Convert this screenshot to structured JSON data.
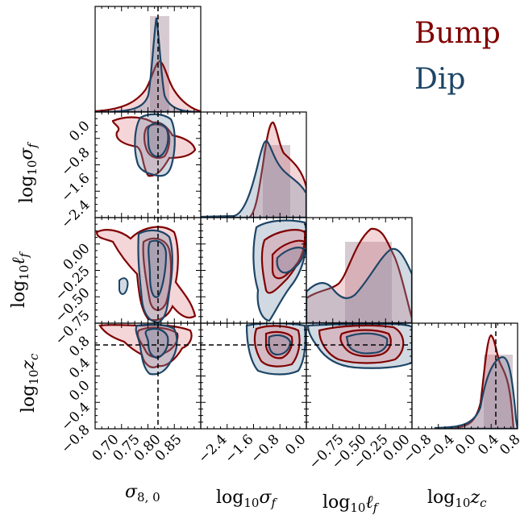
{
  "chart_data": {
    "type": "corner",
    "parameters": [
      "σ8,0",
      "log10σf",
      "log10ℓf",
      "log10zc"
    ],
    "axis_labels": {
      "sigma8": "σ",
      "sigma8_sub": "8, 0",
      "log": "log",
      "log_sub": "10",
      "sigma_f": "σ",
      "sigma_f_sub": "f",
      "ell_f": "ℓ",
      "ell_f_sub": "f",
      "z_c": "z",
      "z_c_sub": "c"
    },
    "ticks": {
      "sigma8": [
        "0.70",
        "0.75",
        "0.80",
        "0.85"
      ],
      "log10_sigma_f": [
        "−2.4",
        "−1.6",
        "−0.8",
        "0.0"
      ],
      "log10_ell_f": [
        "−0.75",
        "−0.50",
        "−0.25",
        "0.00"
      ],
      "log10_zc": [
        "−0.8",
        "−0.4",
        "0.0",
        "0.4",
        "0.8"
      ]
    },
    "truth": {
      "sigma8": 0.8,
      "log10_zc": 0.6
    },
    "ranges": {
      "sigma8": [
        0.675,
        0.875
      ],
      "log10_sigma_f": [
        -3.0,
        0.2
      ],
      "log10_ell_f": [
        -0.95,
        0.05
      ],
      "log10_zc": [
        -0.9,
        1.0
      ]
    },
    "series": [
      {
        "name": "Bump",
        "color": "#800000",
        "fill": "#d9747e"
      },
      {
        "name": "Dip",
        "color": "#1d4566",
        "fill": "#7a93ad"
      }
    ]
  }
}
